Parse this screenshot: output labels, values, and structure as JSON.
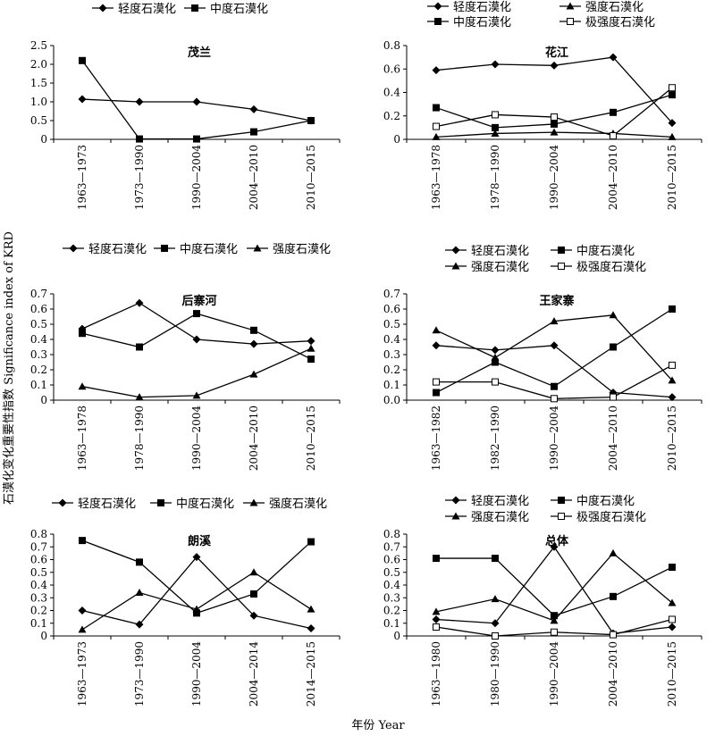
{
  "figure": {
    "ylabel": "石漠化变化重要性指数 Significance index of KRD",
    "xlabel": "年份 Year"
  },
  "chart_data": [
    {
      "type": "line",
      "title": "茂兰",
      "categories": [
        "1963—1973",
        "1973—1990",
        "1990—2004",
        "2004—2010",
        "2010—2015"
      ],
      "ylim": [
        0,
        2.5
      ],
      "yticks": [
        "0",
        "0.5",
        "1.0",
        "1.5",
        "2.0",
        "2.5"
      ],
      "legend": [
        "轻度石漠化",
        "中度石漠化"
      ],
      "series": [
        {
          "name": "轻度石漠化",
          "marker": "diamond",
          "values": [
            1.07,
            1.0,
            1.0,
            0.8,
            0.5
          ]
        },
        {
          "name": "中度石漠化",
          "marker": "square",
          "values": [
            2.1,
            0.01,
            0.01,
            0.2,
            0.5
          ]
        }
      ]
    },
    {
      "type": "line",
      "title": "花江",
      "categories": [
        "1963—1978",
        "1978—1990",
        "1990—2004",
        "2004—2010",
        "2010—2015"
      ],
      "ylim": [
        0,
        0.8
      ],
      "yticks": [
        "0",
        "0.2",
        "0.4",
        "0.6",
        "0.8"
      ],
      "legend": [
        "轻度石漠化",
        "强度石漠化",
        "中度石漠化",
        "极强度石漠化"
      ],
      "series": [
        {
          "name": "轻度石漠化",
          "marker": "diamond",
          "values": [
            0.59,
            0.64,
            0.63,
            0.7,
            0.14
          ]
        },
        {
          "name": "中度石漠化",
          "marker": "square",
          "values": [
            0.27,
            0.1,
            0.13,
            0.23,
            0.38
          ]
        },
        {
          "name": "强度石漠化",
          "marker": "triangle",
          "values": [
            0.02,
            0.05,
            0.06,
            0.05,
            0.02
          ]
        },
        {
          "name": "极强度石漠化",
          "marker": "open-square",
          "values": [
            0.11,
            0.21,
            0.19,
            0.03,
            0.44
          ]
        }
      ]
    },
    {
      "type": "line",
      "title": "后寨河",
      "categories": [
        "1963—1978",
        "1978—1990",
        "1990—2004",
        "2004—2010",
        "2010—2015"
      ],
      "ylim": [
        0,
        0.7
      ],
      "yticks": [
        "0",
        "0.1",
        "0.2",
        "0.3",
        "0.4",
        "0.5",
        "0.6",
        "0.7"
      ],
      "legend": [
        "轻度石漠化",
        "中度石漠化",
        "强度石漠化"
      ],
      "series": [
        {
          "name": "轻度石漠化",
          "marker": "diamond",
          "values": [
            0.47,
            0.64,
            0.4,
            0.37,
            0.39
          ]
        },
        {
          "name": "中度石漠化",
          "marker": "square",
          "values": [
            0.44,
            0.35,
            0.57,
            0.46,
            0.27
          ]
        },
        {
          "name": "强度石漠化",
          "marker": "triangle",
          "values": [
            0.09,
            0.02,
            0.03,
            0.17,
            0.34
          ]
        }
      ]
    },
    {
      "type": "line",
      "title": "王家寨",
      "categories": [
        "1963—1982",
        "1982—1990",
        "1990—2004",
        "2004—2010",
        "2010—2015"
      ],
      "ylim": [
        0,
        0.7
      ],
      "yticks": [
        "0.0",
        "0.1",
        "0.2",
        "0.3",
        "0.4",
        "0.5",
        "0.6",
        "0.7"
      ],
      "legend": [
        "轻度石漠化",
        "中度石漠化",
        "强度石漠化",
        "极强度石漠化"
      ],
      "series": [
        {
          "name": "轻度石漠化",
          "marker": "diamond",
          "values": [
            0.36,
            0.33,
            0.36,
            0.05,
            0.02
          ]
        },
        {
          "name": "中度石漠化",
          "marker": "square",
          "values": [
            0.05,
            0.25,
            0.09,
            0.35,
            0.6
          ]
        },
        {
          "name": "强度石漠化",
          "marker": "triangle",
          "values": [
            0.46,
            0.28,
            0.52,
            0.56,
            0.13
          ]
        },
        {
          "name": "极强度石漠化",
          "marker": "open-square",
          "values": [
            0.12,
            0.12,
            0.01,
            0.02,
            0.23
          ]
        }
      ]
    },
    {
      "type": "line",
      "title": "朗溪",
      "categories": [
        "1963—1973",
        "1973—1990",
        "1990—2004",
        "2004—2014",
        "2014—2015"
      ],
      "ylim": [
        0,
        0.8
      ],
      "yticks": [
        "0",
        "0.1",
        "0.2",
        "0.3",
        "0.4",
        "0.5",
        "0.6",
        "0.7",
        "0.8"
      ],
      "legend": [
        "轻度石漠化",
        "中度石漠化",
        "强度石漠化"
      ],
      "series": [
        {
          "name": "轻度石漠化",
          "marker": "diamond",
          "values": [
            0.2,
            0.09,
            0.62,
            0.16,
            0.06
          ]
        },
        {
          "name": "中度石漠化",
          "marker": "square",
          "values": [
            0.75,
            0.58,
            0.18,
            0.33,
            0.74
          ]
        },
        {
          "name": "强度石漠化",
          "marker": "triangle",
          "values": [
            0.05,
            0.34,
            0.21,
            0.5,
            0.21
          ]
        }
      ]
    },
    {
      "type": "line",
      "title": "总体",
      "categories": [
        "1963—1980",
        "1980—1990",
        "1990—2004",
        "2004—2010",
        "2010—2015"
      ],
      "ylim": [
        0,
        0.8
      ],
      "yticks": [
        "0",
        "0.1",
        "0.2",
        "0.3",
        "0.4",
        "0.5",
        "0.6",
        "0.7",
        "0.8"
      ],
      "legend": [
        "轻度石漠化",
        "中度石漠化",
        "强度石漠化",
        "极强度石漠化"
      ],
      "series": [
        {
          "name": "轻度石漠化",
          "marker": "diamond",
          "values": [
            0.13,
            0.1,
            0.7,
            0.02,
            0.07
          ]
        },
        {
          "name": "中度石漠化",
          "marker": "square",
          "values": [
            0.61,
            0.61,
            0.16,
            0.31,
            0.54
          ]
        },
        {
          "name": "强度石漠化",
          "marker": "triangle",
          "values": [
            0.19,
            0.29,
            0.12,
            0.65,
            0.26
          ]
        },
        {
          "name": "极强度石漠化",
          "marker": "open-square",
          "values": [
            0.07,
            0.0,
            0.03,
            0.01,
            0.13
          ]
        }
      ]
    }
  ]
}
